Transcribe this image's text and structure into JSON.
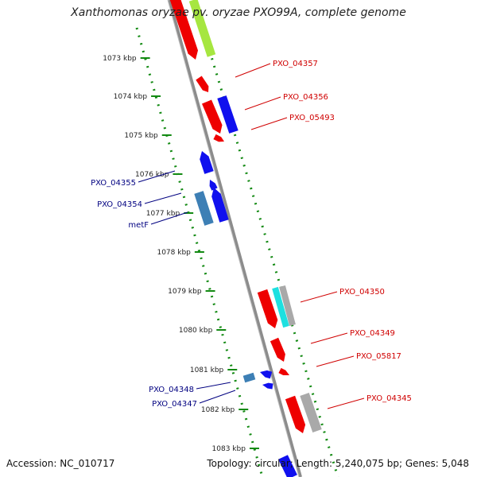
{
  "title": "Xanthomonas oryzae pv. oryzae PXO99A, complete genome",
  "footer": {
    "accession": "Accession: NC_010717",
    "summary": "Topology: circular; Length: 5,240,075 bp; Genes: 5,048"
  },
  "ticks": [
    "1073 kbp",
    "1074 kbp",
    "1075 kbp",
    "1076 kbp",
    "1077 kbp",
    "1078 kbp",
    "1079 kbp",
    "1080 kbp",
    "1081 kbp",
    "1082 kbp",
    "1083 kbp"
  ],
  "right_gene_labels": [
    "PXO_04357",
    "PXO_04356",
    "PXO_05493",
    "PXO_04350",
    "PXO_04349",
    "PXO_05817",
    "PXO_04345"
  ],
  "left_gene_labels": [
    "PXO_04355",
    "PXO_04354",
    "metF",
    "PXO_04348",
    "PXO_04347"
  ],
  "colors": {
    "forward_label": "#d00000",
    "reverse_label": "#000080",
    "gene_red": "#ee0000",
    "gene_blue": "#1010ee",
    "gene_steel": "#3d7fb5",
    "gene_cyan": "#1ee0e0",
    "gene_gray": "#a9a9a9",
    "gene_lime": "#a6e640",
    "axis": "#8c8c8c",
    "tick_green": "#138a13"
  }
}
